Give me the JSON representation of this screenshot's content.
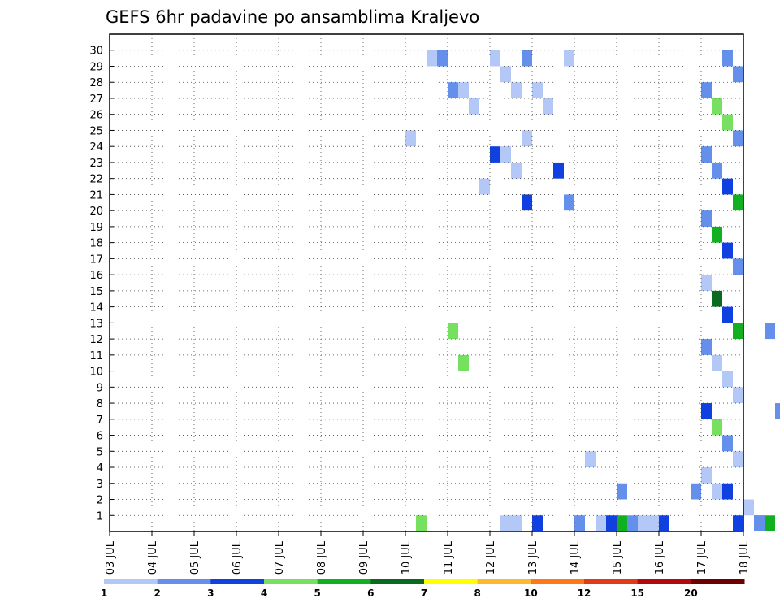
{
  "chart_data": {
    "type": "heatmap",
    "title": "GEFS 6hr padavine po ansamblima Kraljevo",
    "x_tick_labels": [
      "03 JUL",
      "04 JUL",
      "05 JUL",
      "06 JUL",
      "07 JUL",
      "08 JUL",
      "09 JUL",
      "10 JUL",
      "11 JUL",
      "12 JUL",
      "13 JUL",
      "14 JUL",
      "15 JUL",
      "16 JUL",
      "17 JUL",
      "18 JUL"
    ],
    "x_range_days": [
      0,
      15
    ],
    "steps_per_day": 4,
    "y_tick_labels": [
      "1",
      "2",
      "3",
      "4",
      "5",
      "6",
      "7",
      "8",
      "9",
      "10",
      "11",
      "12",
      "13",
      "14",
      "15",
      "16",
      "17",
      "18",
      "19",
      "20",
      "21",
      "22",
      "23",
      "24",
      "25",
      "26",
      "27",
      "28",
      "29",
      "30"
    ],
    "y_range": [
      0,
      30
    ],
    "grid": "dotted",
    "colorbar": {
      "position": "bottom",
      "labels": [
        "1",
        "2",
        "3",
        "4",
        "5",
        "6",
        "7",
        "8",
        "10",
        "12",
        "15",
        "20"
      ],
      "colors": [
        "#b4c8f8",
        "#6490ec",
        "#1040e0",
        "#78e060",
        "#10b020",
        "#0a6a20",
        "#ffff00",
        "#ffb830",
        "#ff7818",
        "#e03a18",
        "#b00a0a",
        "#6e0000"
      ]
    },
    "value_units": "colorbar class index (0 = 1-2, 11 = >20)",
    "cells": [
      [
        0,
        11,
        1
      ],
      [
        0,
        11,
        2
      ],
      [
        0,
        12,
        0
      ],
      [
        0,
        12,
        1
      ],
      [
        0,
        13,
        2
      ],
      [
        0,
        14,
        2
      ],
      [
        0,
        15,
        4
      ],
      [
        0,
        15,
        5
      ],
      [
        2,
        12,
        1
      ],
      [
        2,
        13,
        1
      ],
      [
        2,
        14,
        2
      ],
      [
        2,
        14,
        0
      ],
      [
        3,
        14,
        0
      ],
      [
        4,
        14,
        0
      ],
      [
        5,
        14,
        1
      ],
      [
        6,
        14,
        3
      ],
      [
        7,
        14,
        2
      ],
      [
        8,
        14,
        0
      ],
      [
        9,
        14,
        0
      ],
      [
        10,
        14,
        0
      ],
      [
        11,
        14,
        1
      ],
      [
        12,
        14,
        4
      ],
      [
        13,
        14,
        2
      ],
      [
        14,
        14,
        5
      ],
      [
        15,
        14,
        0
      ],
      [
        16,
        14,
        1
      ],
      [
        17,
        14,
        2
      ],
      [
        18,
        14,
        4
      ],
      [
        19,
        14,
        1
      ],
      [
        20,
        14,
        4
      ],
      [
        21,
        14,
        2
      ],
      [
        22,
        14,
        1
      ],
      [
        23,
        14,
        1
      ],
      [
        24,
        14,
        1
      ],
      [
        25,
        14,
        3
      ],
      [
        26,
        14,
        3
      ],
      [
        27,
        14,
        1
      ],
      [
        28,
        14,
        1
      ],
      [
        29,
        14,
        1
      ],
      [
        0,
        15,
        1
      ],
      [
        1,
        15,
        0
      ],
      [
        7,
        15,
        1
      ],
      [
        12,
        15,
        1
      ],
      [
        0,
        7,
        3
      ],
      [
        24,
        7,
        0
      ],
      [
        29,
        7,
        1
      ],
      [
        29,
        7,
        0
      ],
      [
        10,
        8,
        3
      ],
      [
        12,
        8,
        3
      ],
      [
        21,
        8,
        0
      ],
      [
        26,
        8,
        0
      ],
      [
        27,
        8,
        0
      ],
      [
        27,
        8,
        1
      ],
      [
        20,
        9,
        2
      ],
      [
        22,
        9,
        0
      ],
      [
        23,
        9,
        0
      ],
      [
        23,
        9,
        2
      ],
      [
        24,
        9,
        0
      ],
      [
        27,
        9,
        0
      ],
      [
        28,
        9,
        0
      ],
      [
        29,
        9,
        0
      ],
      [
        29,
        9,
        1
      ],
      [
        0,
        9,
        0
      ],
      [
        0,
        9,
        0
      ],
      [
        0,
        10,
        2
      ],
      [
        20,
        10,
        1
      ],
      [
        22,
        10,
        2
      ],
      [
        26,
        10,
        0
      ],
      [
        27,
        10,
        0
      ],
      [
        29,
        10,
        0
      ],
      [
        0,
        11,
        0
      ],
      [
        4,
        11,
        0
      ],
      [
        0,
        12,
        4
      ],
      [
        0,
        12,
        0
      ]
    ]
  }
}
